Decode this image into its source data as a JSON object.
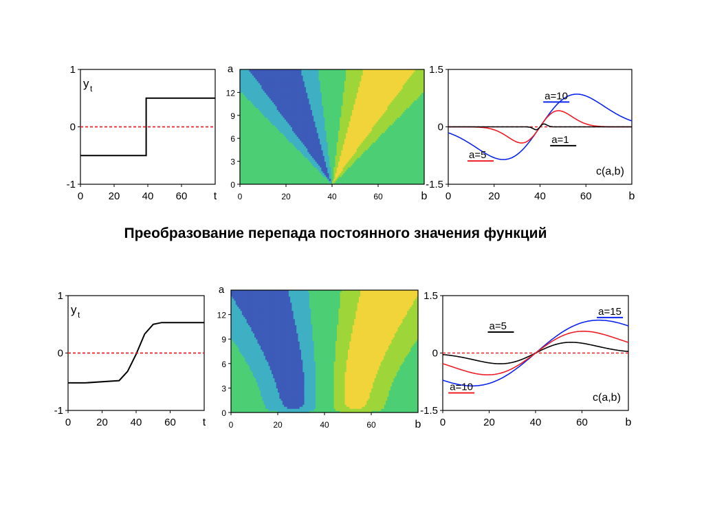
{
  "caption": "Преобразование перепада постоянного значения функций",
  "colors": {
    "contour": [
      "#7b3fa6",
      "#3d5bb8",
      "#3fb0c4",
      "#4ccf74",
      "#9ed63a",
      "#f0d43a",
      "#f0902c",
      "#ee3a3a"
    ],
    "background": "#4ccf74",
    "series": {
      "black": "#000000",
      "red": "#ee1c24",
      "blue": "#0a24ee",
      "baseline": "#ee1c24"
    }
  },
  "chart_data": [
    {
      "type": "line",
      "panel": "row1-signal",
      "ylabel": "y",
      "ylabel_sub": "t",
      "xlabel": "t",
      "xlim": [
        0,
        80
      ],
      "ylim": [
        -1,
        1
      ],
      "xticks": [
        "0",
        "20",
        "40",
        "60"
      ],
      "yticks": [
        "1",
        "0",
        "-1"
      ],
      "series": [
        {
          "color": "black",
          "x": [
            0,
            39,
            39,
            80
          ],
          "y": [
            -0.5,
            -0.5,
            0.5,
            0.5
          ]
        },
        {
          "color": "baseline",
          "dashed": true,
          "x": [
            0,
            80
          ],
          "y": [
            0,
            0
          ]
        }
      ]
    },
    {
      "type": "heatmap",
      "panel": "row1-contour",
      "ylabel": "a",
      "xlabel": "b",
      "xlim": [
        0,
        80
      ],
      "ylim": [
        0,
        15
      ],
      "xticks": [
        "0",
        "20",
        "40",
        "60"
      ],
      "yticks": [
        "0",
        "3",
        "6",
        "9",
        "12"
      ],
      "center": 40,
      "width_coef": 1.6,
      "offset": 0.3,
      "a_offset": 0.3
    },
    {
      "type": "line",
      "panel": "row1-coeffs",
      "xlabel": "b",
      "annotation": "c(a,b)",
      "xlim": [
        0,
        80
      ],
      "ylim": [
        -1.5,
        1.5
      ],
      "xticks": [
        "0",
        "20",
        "40",
        "60"
      ],
      "yticks": [
        "1.5",
        "0",
        "-1.5"
      ],
      "center": 40,
      "width_coef": 1.6,
      "offset": 0.3,
      "amplitude": 1.43,
      "series": [
        {
          "name": "a=10",
          "a": 10,
          "color": "blue",
          "label_at": [
            42,
            0.72
          ]
        },
        {
          "name": "a=5",
          "a": 5,
          "color": "red",
          "label_at": [
            9,
            -0.82
          ]
        },
        {
          "name": "a=1",
          "a": 1,
          "color": "black",
          "label_at": [
            45,
            -0.42
          ]
        }
      ]
    },
    {
      "type": "line",
      "panel": "row2-signal",
      "ylabel": "y",
      "ylabel_sub": "t",
      "xlabel": "t",
      "xlim": [
        0,
        80
      ],
      "ylim": [
        -1,
        1
      ],
      "xticks": [
        "0",
        "20",
        "40",
        "60"
      ],
      "yticks": [
        "1",
        "0",
        "-1"
      ],
      "series": [
        {
          "color": "black",
          "x": [
            0,
            10,
            30,
            35,
            40,
            45,
            50,
            55,
            80
          ],
          "y": [
            -0.52,
            -0.52,
            -0.48,
            -0.32,
            -0.02,
            0.33,
            0.5,
            0.53,
            0.53
          ]
        },
        {
          "color": "baseline",
          "dashed": true,
          "x": [
            0,
            80
          ],
          "y": [
            0,
            0
          ]
        }
      ]
    },
    {
      "type": "heatmap",
      "panel": "row2-contour",
      "ylabel": "a",
      "xlabel": "b",
      "xlim": [
        0,
        80
      ],
      "ylim": [
        0,
        15
      ],
      "xticks": [
        "0",
        "20",
        "40",
        "60"
      ],
      "yticks": [
        "0",
        "3",
        "6",
        "9",
        "12"
      ],
      "center": 40,
      "width_coef": 1.6,
      "offset": 0.3,
      "a_offset": 0.3,
      "smoothing": 13
    },
    {
      "type": "line",
      "panel": "row2-coeffs",
      "xlabel": "b",
      "annotation": "c(a,b)",
      "xlim": [
        0,
        80
      ],
      "ylim": [
        -1.5,
        1.5
      ],
      "xticks": [
        "0",
        "20",
        "40",
        "60"
      ],
      "yticks": [
        "1.5",
        "0",
        "-1.5"
      ],
      "center": 40,
      "width_coef": 1.6,
      "offset": 0.3,
      "amplitude": 1.43,
      "smoothing": 13,
      "series": [
        {
          "name": "a=15",
          "a": 15,
          "color": "blue",
          "label_at": [
            67,
            1.0
          ]
        },
        {
          "name": "a=5",
          "a": 5,
          "color": "black",
          "label_at": [
            20,
            0.62
          ]
        },
        {
          "name": "a=10",
          "a": 10,
          "color": "red",
          "label_at": [
            3,
            -0.97
          ]
        }
      ]
    }
  ]
}
